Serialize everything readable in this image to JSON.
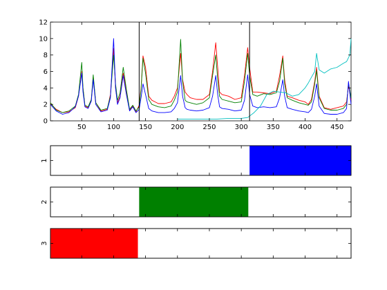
{
  "chart_data": [
    {
      "type": "line",
      "title": "",
      "xlabel": "",
      "ylabel": "",
      "xlim": [
        1,
        472
      ],
      "ylim": [
        0,
        12
      ],
      "grid": false,
      "x_ticks": [
        "50",
        "100",
        "150",
        "200",
        "250",
        "300",
        "350",
        "400",
        "450"
      ],
      "y_ticks": [
        "0",
        "2",
        "4",
        "6",
        "8",
        "10",
        "12"
      ],
      "vertical_lines": [
        140,
        313
      ],
      "series": [
        {
          "color": "#ff0000",
          "x": [
            1,
            10,
            20,
            30,
            40,
            45,
            50,
            52,
            55,
            60,
            65,
            68,
            72,
            80,
            90,
            95,
            100,
            103,
            106,
            110,
            115,
            120,
            125,
            130,
            135,
            140,
            143,
            146,
            150,
            155,
            160,
            165,
            170,
            180,
            190,
            195,
            200,
            205,
            208,
            212,
            215,
            220,
            230,
            240,
            250,
            255,
            260,
            263,
            266,
            270,
            280,
            290,
            300,
            305,
            310,
            313,
            318,
            325,
            335,
            345,
            355,
            360,
            365,
            368,
            372,
            380,
            390,
            400,
            405,
            410,
            415,
            418,
            422,
            430,
            440,
            450,
            460,
            465,
            468,
            472
          ],
          "y": [
            2.1,
            1.4,
            1.0,
            1.1,
            1.6,
            3.0,
            6.0,
            4.0,
            1.8,
            1.6,
            2.5,
            5.3,
            2.2,
            1.2,
            1.4,
            3.2,
            8.8,
            4.0,
            2.2,
            3.0,
            5.8,
            3.6,
            1.3,
            1.8,
            1.1,
            1.9,
            4.0,
            7.9,
            6.5,
            3.0,
            2.5,
            2.3,
            2.1,
            2.1,
            2.3,
            3.0,
            4.0,
            8.2,
            5.0,
            3.5,
            3.2,
            2.8,
            2.6,
            2.6,
            3.2,
            6.0,
            9.5,
            6.5,
            3.5,
            3.2,
            3.0,
            2.6,
            2.8,
            5.5,
            8.9,
            6.5,
            3.5,
            3.5,
            3.4,
            3.3,
            3.6,
            5.5,
            7.9,
            5.0,
            3.0,
            2.8,
            2.5,
            2.3,
            2.0,
            2.6,
            4.8,
            6.5,
            3.0,
            1.6,
            1.4,
            1.6,
            1.8,
            2.3,
            4.3,
            2.5
          ]
        },
        {
          "color": "#008000",
          "x": [
            1,
            10,
            20,
            30,
            40,
            45,
            50,
            52,
            55,
            60,
            65,
            68,
            72,
            80,
            90,
            95,
            100,
            103,
            106,
            110,
            115,
            120,
            125,
            130,
            135,
            140,
            143,
            146,
            150,
            155,
            160,
            170,
            180,
            190,
            195,
            200,
            205,
            208,
            212,
            215,
            220,
            230,
            240,
            250,
            255,
            260,
            263,
            266,
            270,
            280,
            290,
            300,
            305,
            310,
            313,
            318,
            325,
            335,
            345,
            355,
            360,
            365,
            368,
            372,
            380,
            390,
            400,
            405,
            410,
            415,
            418,
            422,
            430,
            440,
            450,
            460,
            465,
            468,
            472
          ],
          "y": [
            2.2,
            1.3,
            1.0,
            1.2,
            1.8,
            3.2,
            7.1,
            4.0,
            1.9,
            1.7,
            2.6,
            5.6,
            2.2,
            1.3,
            1.5,
            3.0,
            8.0,
            4.5,
            2.5,
            3.4,
            6.5,
            3.8,
            1.4,
            1.9,
            1.2,
            1.7,
            3.8,
            7.6,
            5.8,
            2.6,
            2.0,
            1.7,
            1.6,
            1.8,
            2.5,
            3.5,
            9.9,
            4.8,
            2.5,
            2.3,
            2.2,
            2.0,
            2.2,
            2.8,
            5.5,
            8.0,
            5.0,
            3.0,
            2.6,
            2.4,
            2.2,
            2.3,
            4.8,
            8.2,
            5.5,
            3.2,
            3.0,
            3.3,
            3.2,
            3.4,
            4.8,
            7.6,
            4.5,
            2.8,
            2.5,
            2.2,
            2.0,
            1.9,
            2.3,
            4.5,
            6.1,
            2.8,
            1.5,
            1.3,
            1.3,
            1.5,
            2.0,
            4.6,
            2.8
          ]
        },
        {
          "color": "#0000ff",
          "x": [
            1,
            10,
            20,
            30,
            40,
            45,
            50,
            52,
            55,
            60,
            65,
            68,
            72,
            80,
            90,
            95,
            100,
            103,
            106,
            110,
            115,
            120,
            125,
            130,
            135,
            140,
            143,
            146,
            150,
            155,
            160,
            170,
            180,
            190,
            195,
            200,
            205,
            208,
            212,
            215,
            220,
            230,
            240,
            250,
            255,
            260,
            263,
            266,
            270,
            280,
            290,
            300,
            305,
            310,
            313,
            318,
            325,
            335,
            345,
            355,
            360,
            365,
            368,
            372,
            380,
            390,
            400,
            405,
            410,
            415,
            418,
            422,
            430,
            440,
            450,
            460,
            465,
            468,
            472
          ],
          "y": [
            2.0,
            1.2,
            0.8,
            1.0,
            1.7,
            3.0,
            5.8,
            3.5,
            1.7,
            1.5,
            2.4,
            5.0,
            2.0,
            1.1,
            1.3,
            2.8,
            10.0,
            4.0,
            2.0,
            2.8,
            5.5,
            3.2,
            1.2,
            1.7,
            1.0,
            1.4,
            2.8,
            4.5,
            3.2,
            1.5,
            1.2,
            1.0,
            1.0,
            1.1,
            1.5,
            2.2,
            5.5,
            3.0,
            1.6,
            1.4,
            1.3,
            1.2,
            1.3,
            1.6,
            3.0,
            5.5,
            3.2,
            1.7,
            1.5,
            1.4,
            1.2,
            1.3,
            2.5,
            5.6,
            3.2,
            1.8,
            1.6,
            1.7,
            1.6,
            1.7,
            2.8,
            5.0,
            3.0,
            1.6,
            1.4,
            1.2,
            1.1,
            1.0,
            1.4,
            3.0,
            4.5,
            1.8,
            0.9,
            0.8,
            0.8,
            1.0,
            1.5,
            4.8,
            2.0
          ]
        },
        {
          "color": "#00bfbf",
          "x": [
            200,
            220,
            240,
            260,
            280,
            300,
            310,
            320,
            330,
            340,
            350,
            360,
            370,
            380,
            390,
            400,
            405,
            410,
            415,
            418,
            422,
            430,
            440,
            450,
            460,
            465,
            470,
            472
          ],
          "y": [
            0.2,
            0.2,
            0.2,
            0.2,
            0.3,
            0.3,
            0.4,
            1.0,
            1.8,
            3.2,
            3.6,
            3.5,
            3.4,
            3.0,
            3.2,
            4.0,
            4.6,
            5.3,
            6.0,
            8.2,
            6.2,
            5.8,
            6.3,
            6.5,
            7.0,
            7.2,
            8.0,
            10.0
          ]
        }
      ]
    },
    {
      "type": "bar",
      "title": "",
      "xlim": [
        1,
        472
      ],
      "y_tick": "1",
      "segments": [
        {
          "start": 313,
          "end": 472,
          "color": "#0000ff"
        }
      ]
    },
    {
      "type": "bar",
      "title": "",
      "xlim": [
        1,
        472
      ],
      "y_tick": "2",
      "segments": [
        {
          "start": 140,
          "end": 311,
          "color": "#008000"
        }
      ]
    },
    {
      "type": "bar",
      "title": "",
      "xlim": [
        1,
        472
      ],
      "y_tick": "3",
      "segments": [
        {
          "start": 1,
          "end": 138,
          "color": "#ff0000"
        }
      ]
    }
  ]
}
